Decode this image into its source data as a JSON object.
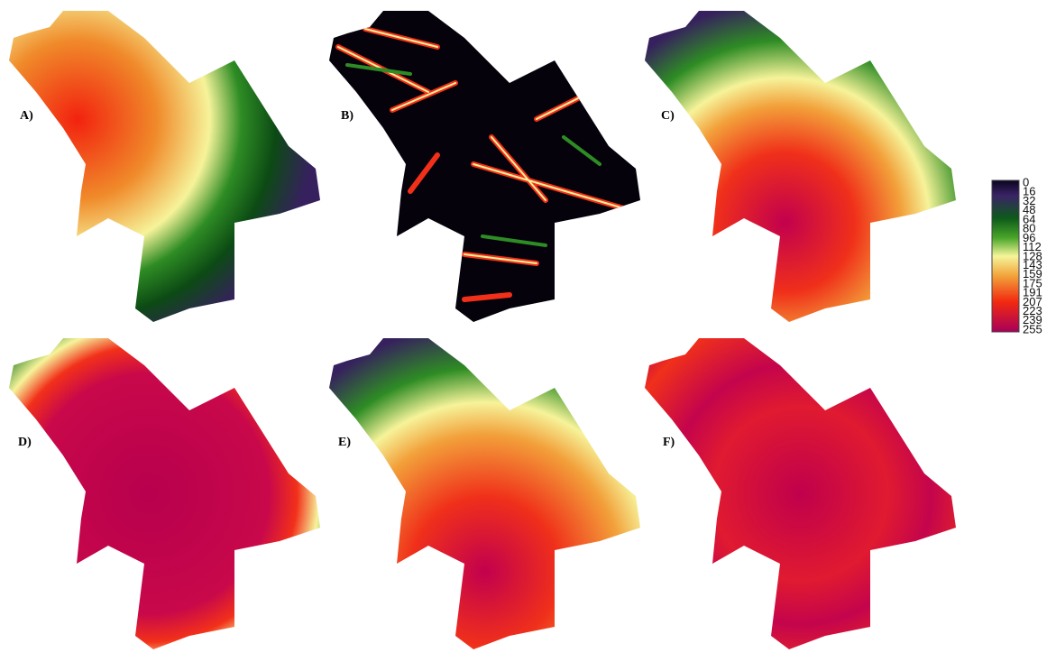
{
  "panels": [
    {
      "label": "A)"
    },
    {
      "label": "B)"
    },
    {
      "label": "C)"
    },
    {
      "label": "D)"
    },
    {
      "label": "E)"
    },
    {
      "label": "F)"
    }
  ],
  "legend": {
    "ticks": [
      0,
      16,
      32,
      48,
      64,
      80,
      96,
      112,
      128,
      143,
      159,
      175,
      191,
      207,
      223,
      239,
      255
    ]
  }
}
